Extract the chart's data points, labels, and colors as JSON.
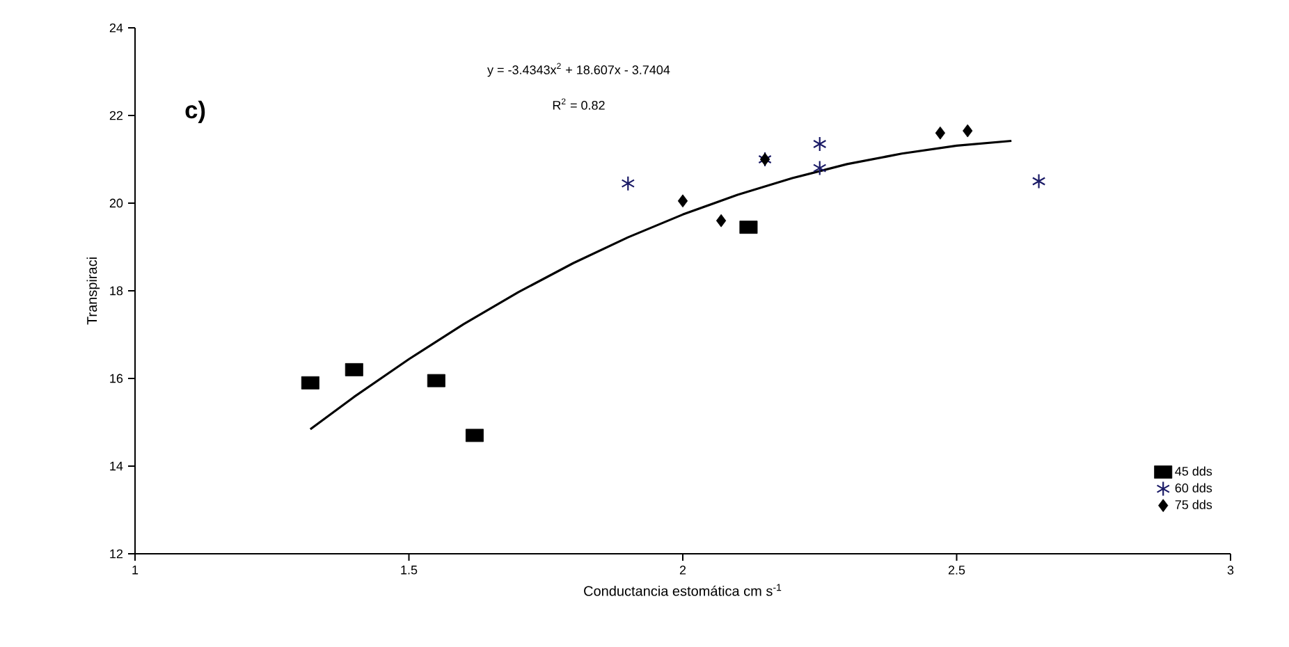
{
  "chart_data": {
    "type": "scatter",
    "xlabel": "Conductancia estomática cm s$^{-1}$",
    "ylabel": "Transpiraci",
    "annotations": [
      "c)",
      "y = -3.4343x$^{2}$ + 18.607x - 3.7404",
      "R$^{2}$ = 0.82"
    ],
    "xlim": [
      1,
      3
    ],
    "xticks": [
      1,
      1.5,
      2,
      2.5,
      3
    ],
    "ylim": [
      12,
      24
    ],
    "yticks": [
      12,
      14,
      16,
      18,
      20,
      22,
      24
    ],
    "grid": false,
    "legend": "bottom right",
    "series": [
      {
        "name": "45 dds",
        "color": "#000000",
        "marker": "square",
        "x": [
          1.32,
          1.4,
          1.55,
          1.62,
          2.12
        ],
        "values": [
          15.9,
          16.2,
          15.95,
          14.7,
          19.45
        ]
      },
      {
        "name": "60 dds",
        "color": "#1a1a66",
        "marker": "cross",
        "x": [
          1.9,
          2.15,
          2.25,
          2.25,
          2.65
        ],
        "values": [
          20.45,
          21.0,
          21.35,
          20.8,
          20.5
        ]
      },
      {
        "name": "75 dds",
        "color": "#000000",
        "marker": "diamond",
        "x": [
          2.0,
          2.07,
          2.15,
          2.47,
          2.52
        ],
        "values": [
          20.05,
          19.6,
          21.0,
          21.6,
          21.65
        ]
      },
      {
        "type": "line",
        "color": "#000000",
        "marker": "none",
        "line_style": "solid",
        "x": [
          1.32,
          1.4,
          1.5,
          1.6,
          1.7,
          1.8,
          1.9,
          2.0,
          2.1,
          2.2,
          2.3,
          2.4,
          2.5,
          2.6
        ],
        "values": [
          14.84,
          15.58,
          16.44,
          17.24,
          17.97,
          18.63,
          19.22,
          19.74,
          20.19,
          20.57,
          20.89,
          21.13,
          21.31,
          21.42
        ]
      }
    ]
  }
}
